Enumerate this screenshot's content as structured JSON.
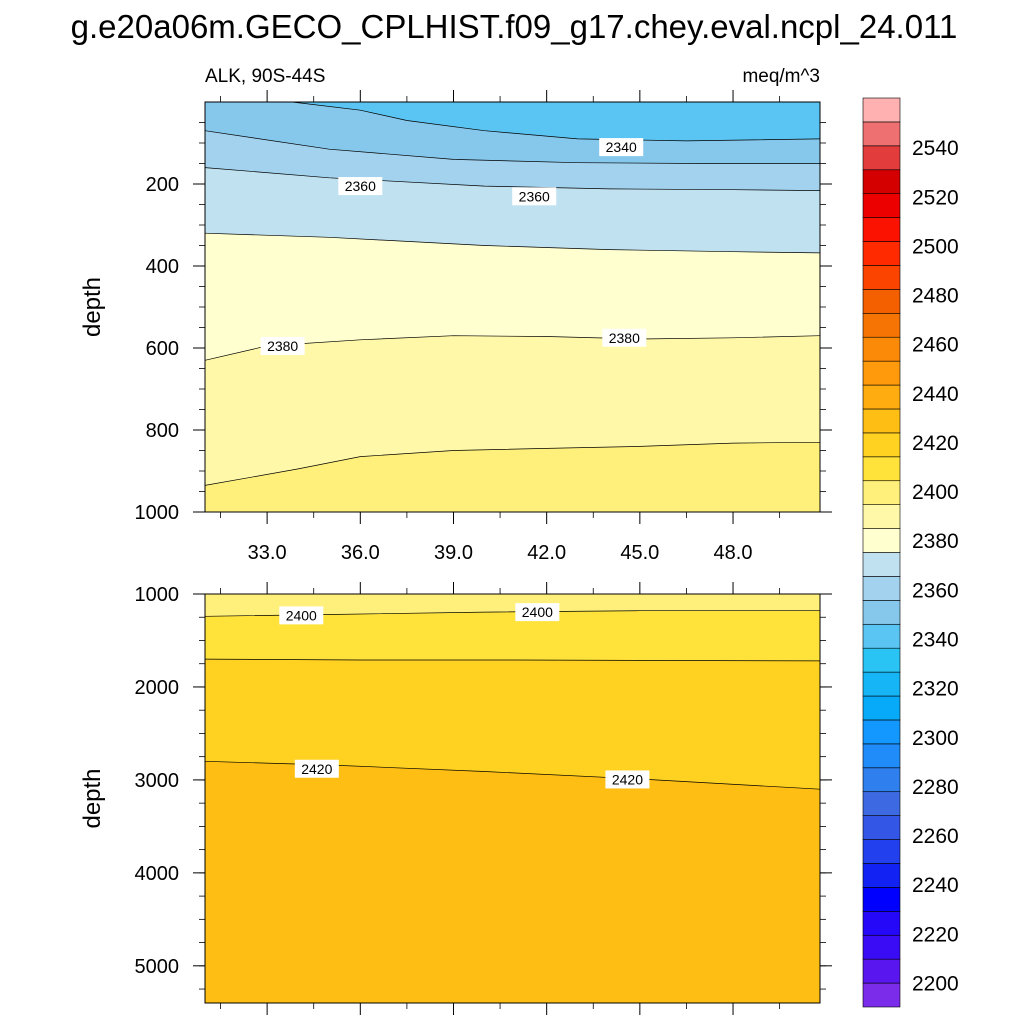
{
  "chart_data": {
    "type": "contour",
    "title": "g.e20a06m.GECO_CPLHIST.f09_g17.chey.eval.ncpl_24.011",
    "variable_label": "ALK, 90S-44S",
    "units_label": "meq/m^3",
    "colorbar": {
      "levels": [
        2190,
        2200,
        2210,
        2220,
        2230,
        2240,
        2250,
        2260,
        2270,
        2280,
        2290,
        2300,
        2310,
        2320,
        2330,
        2340,
        2350,
        2360,
        2370,
        2380,
        2390,
        2400,
        2410,
        2420,
        2430,
        2440,
        2450,
        2460,
        2470,
        2480,
        2490,
        2500,
        2510,
        2520,
        2530,
        2540,
        2550,
        2560
      ],
      "colors": [
        "#7b2bea",
        "#5a16ee",
        "#3a0cf5",
        "#2508f8",
        "#0000ff",
        "#1222f2",
        "#2240ee",
        "#3356e6",
        "#3d6ae2",
        "#2f80ee",
        "#1f8cfa",
        "#1298ff",
        "#06aaf8",
        "#16b6f6",
        "#2ac4f4",
        "#5ac4f2",
        "#86c8ec",
        "#a2d2ee",
        "#c0e2f0",
        "#ffffd0",
        "#fff8a8",
        "#fff07c",
        "#ffe23a",
        "#ffd120",
        "#ffbe14",
        "#ffac10",
        "#fe9a0c",
        "#fb8a08",
        "#f57404",
        "#f46000",
        "#fb4400",
        "#ff2a00",
        "#fb1200",
        "#ec0000",
        "#d40000",
        "#e33c3c",
        "#ef7070",
        "#ffb0b0"
      ],
      "tick_labels": [
        "2200",
        "2220",
        "2240",
        "2260",
        "2280",
        "2300",
        "2320",
        "2340",
        "2360",
        "2380",
        "2400",
        "2420",
        "2440",
        "2460",
        "2480",
        "2500",
        "2520",
        "2540"
      ]
    },
    "panels": [
      {
        "name": "upper",
        "ylabel": "depth",
        "ylim": [
          0,
          1000
        ],
        "xlim": [
          31,
          50.8
        ],
        "yticks": [
          "200",
          "400",
          "600",
          "800",
          "1000"
        ],
        "xticks": [
          "33.0",
          "36.0",
          "39.0",
          "42.0",
          "45.0",
          "48.0"
        ],
        "fill_levels": [
          {
            "value": 2330,
            "color": "#5ac4f2"
          },
          {
            "value": 2340,
            "color": "#86c8ec"
          },
          {
            "value": 2350,
            "color": "#a2d2ee"
          },
          {
            "value": 2360,
            "color": "#c0e2f0"
          },
          {
            "value": 2370,
            "color": "#ffffd0"
          },
          {
            "value": 2380,
            "color": "#fff8a8"
          },
          {
            "value": 2390,
            "color": "#fff07c"
          }
        ],
        "contours": [
          {
            "level": 2340,
            "points": [
              [
                33.8,
                0
              ],
              [
                36,
                20
              ],
              [
                37.5,
                45
              ],
              [
                40,
                70
              ],
              [
                43,
                90
              ],
              [
                46.5,
                95
              ],
              [
                50.8,
                90
              ]
            ]
          },
          {
            "level": 2350,
            "points": [
              [
                31,
                70
              ],
              [
                35,
                115
              ],
              [
                39,
                140
              ],
              [
                43,
                148
              ],
              [
                47,
                150
              ],
              [
                50.8,
                150
              ]
            ]
          },
          {
            "level": 2360,
            "points": [
              [
                31,
                160
              ],
              [
                35,
                185
              ],
              [
                40,
                205
              ],
              [
                44,
                212
              ],
              [
                48,
                214
              ],
              [
                50.8,
                216
              ]
            ]
          },
          {
            "level": 2370,
            "points": [
              [
                31,
                320
              ],
              [
                35,
                330
              ],
              [
                40,
                350
              ],
              [
                44,
                360
              ],
              [
                48,
                365
              ],
              [
                50.8,
                368
              ]
            ]
          },
          {
            "level": 2380,
            "points": [
              [
                31,
                630
              ],
              [
                33,
                595
              ],
              [
                36,
                580
              ],
              [
                39,
                570
              ],
              [
                42,
                572
              ],
              [
                45,
                578
              ],
              [
                48,
                575
              ],
              [
                50.8,
                570
              ]
            ]
          },
          {
            "level": 2390,
            "points": [
              [
                31,
                935
              ],
              [
                34,
                895
              ],
              [
                36,
                865
              ],
              [
                39,
                850
              ],
              [
                42,
                845
              ],
              [
                45,
                840
              ],
              [
                48,
                832
              ],
              [
                50.8,
                830
              ]
            ]
          }
        ],
        "contour_labels": [
          {
            "text": "2340",
            "x": 44.4,
            "y": 110
          },
          {
            "text": "2360",
            "x": 36.0,
            "y": 205
          },
          {
            "text": "2360",
            "x": 41.6,
            "y": 230
          },
          {
            "text": "2380",
            "x": 33.5,
            "y": 595
          },
          {
            "text": "2380",
            "x": 44.5,
            "y": 575
          }
        ]
      },
      {
        "name": "lower",
        "ylabel": "depth",
        "ylim": [
          1000,
          5400
        ],
        "xlim": [
          31,
          50.8
        ],
        "yticks": [
          "1000",
          "2000",
          "3000",
          "4000",
          "5000"
        ],
        "xticks": [],
        "fill_levels": [
          {
            "value": 2390,
            "color": "#fff07c"
          },
          {
            "value": 2400,
            "color": "#ffe23a"
          },
          {
            "value": 2410,
            "color": "#ffd120"
          },
          {
            "value": 2420,
            "color": "#ffbe14"
          }
        ],
        "contours": [
          {
            "level": 2400,
            "points": [
              [
                31,
                1240
              ],
              [
                35,
                1220
              ],
              [
                40,
                1195
              ],
              [
                45,
                1180
              ],
              [
                50.8,
                1180
              ]
            ]
          },
          {
            "level": 2410,
            "points": [
              [
                31,
                1700
              ],
              [
                36,
                1710
              ],
              [
                41,
                1710
              ],
              [
                46,
                1715
              ],
              [
                50.8,
                1720
              ]
            ]
          },
          {
            "level": 2420,
            "points": [
              [
                31,
                2800
              ],
              [
                35,
                2840
              ],
              [
                40,
                2910
              ],
              [
                45,
                2990
              ],
              [
                50.8,
                3100
              ]
            ]
          }
        ],
        "contour_labels": [
          {
            "text": "2400",
            "x": 34.1,
            "y": 1230
          },
          {
            "text": "2400",
            "x": 41.7,
            "y": 1195
          },
          {
            "text": "2420",
            "x": 34.6,
            "y": 2880
          },
          {
            "text": "2420",
            "x": 44.6,
            "y": 2995
          }
        ]
      }
    ]
  }
}
